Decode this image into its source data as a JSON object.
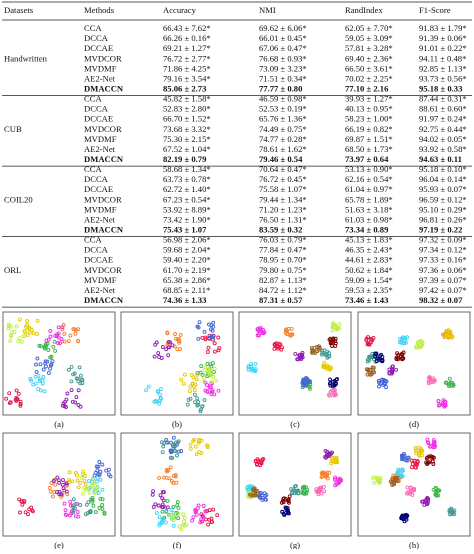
{
  "table": {
    "headers": [
      "Datasets",
      "Methods",
      "Accuracy",
      "NMI",
      "RandIndex",
      "F1-Score"
    ],
    "groups": [
      {
        "dataset": "Handwritten",
        "rows": [
          [
            "CCA",
            "66.43 ± 7.62*",
            "69.62 ± 6.06*",
            "62.05 ± 7.70*",
            "91.83 ± 1.79*"
          ],
          [
            "DCCA",
            "66.26 ± 0.16*",
            "66.01 ± 0.45*",
            "59.05 ± 3.09*",
            "91.39 ± 0.06*"
          ],
          [
            "DCCAE",
            "69.21 ± 1.27*",
            "67.06 ± 0.47*",
            "57.81 ± 3.28*",
            "91.01 ± 0.22*"
          ],
          [
            "MVDCOR",
            "76.72 ± 2.77*",
            "76.68 ± 0.93*",
            "69.40 ± 2.36*",
            "94.11 ± 0.48*"
          ],
          [
            "MVDMF",
            "71.86 ± 4.25*",
            "73.09 ± 3.23*",
            "66.50 ± 3.61*",
            "92.85 ± 1.13*"
          ],
          [
            "AE2-Net",
            "79.16 ± 3.54*",
            "71.51 ± 0.34*",
            "70.02 ± 2.25*",
            "93.73 ± 0.56*"
          ],
          [
            "DMACCN",
            "85.06 ± 2.73",
            "77.77 ± 0.80",
            "77.10 ± 2.16",
            "95.18 ± 0.33"
          ]
        ]
      },
      {
        "dataset": "CUB",
        "rows": [
          [
            "CCA",
            "45.82 ± 1.58*",
            "46.59 ± 0.98*",
            "39.93 ± 1.27*",
            "87.44 ± 0.31*"
          ],
          [
            "DCCA",
            "52.83 ± 2.80*",
            "52.53 ± 0.19*",
            "40.13 ± 0.95*",
            "88.61 ± 0.60*"
          ],
          [
            "DCCAE",
            "66.70 ± 1.52*",
            "65.76 ± 1.36*",
            "58.23 ± 1.00*",
            "91.97 ± 0.24*"
          ],
          [
            "MVDCOR",
            "73.68 ± 3.32*",
            "74.49 ± 0.75*",
            "66.19 ± 0.82*",
            "92.75 ± 0.44*"
          ],
          [
            "MVDMF",
            "75.30 ± 2.15*",
            "74.77 ± 0.28*",
            "69.87 ± 1.51*",
            "94.02 ± 0.05*"
          ],
          [
            "AE2-Net",
            "67.52 ± 1.04*",
            "78.61 ± 1.62*",
            "68.50 ± 1.73*",
            "93.92 ± 0.58*"
          ],
          [
            "DMACCN",
            "82.19 ± 0.79",
            "79.46 ± 0.54",
            "73.97 ± 0.64",
            "94.63 ± 0.11"
          ]
        ]
      },
      {
        "dataset": "COIL20",
        "rows": [
          [
            "CCA",
            "58.68 ± 1.34*",
            "70.64 ± 0.47*",
            "53.13 ± 0.90*",
            "95.18 ± 0.10*"
          ],
          [
            "DCCA",
            "63.73 ± 0.78*",
            "76.72 ± 0.45*",
            "62.16 ± 0.54*",
            "96.04 ± 0.14*"
          ],
          [
            "DCCAE",
            "62.72 ± 1.40*",
            "75.58 ± 1.07*",
            "61.04 ± 0.97*",
            "95.93 ± 0.07*"
          ],
          [
            "MVDCOR",
            "67.23 ± 0.54*",
            "79.44 ± 1.34*",
            "65.78 ± 1.89*",
            "96.59 ± 0.12*"
          ],
          [
            "MVDMF",
            "53.92 ± 8.89*",
            "71.20 ± 1.23*",
            "51.63 ± 3.18*",
            "95.10 ± 0.29*"
          ],
          [
            "AE2-Net",
            "73.42 ± 1.90*",
            "76.50 ± 1.31*",
            "61.03 ± 0.98*",
            "96.81 ± 0.26*"
          ],
          [
            "DMACCN",
            "75.43 ± 1.07",
            "83.59 ± 0.32",
            "73.34 ± 0.89",
            "97.19 ± 0.22"
          ]
        ]
      },
      {
        "dataset": "ORL",
        "rows": [
          [
            "CCA",
            "56.98 ± 2.06*",
            "76.03 ± 0.79*",
            "45.13 ± 1.83*",
            "97.32 ± 0.09*"
          ],
          [
            "DCCA",
            "59.68 ± 2.04*",
            "77.84 ± 0.47*",
            "46.35 ± 2.43*",
            "97.34 ± 0.12*"
          ],
          [
            "DCCAE",
            "59.40 ± 2.20*",
            "78.95 ± 0.70*",
            "44.61 ± 2.83*",
            "97.33 ± 0.16*"
          ],
          [
            "MVDCOR",
            "61.70 ± 2.19*",
            "79.80 ± 0.75*",
            "50.62 ± 1.84*",
            "97.36 ± 0.06*"
          ],
          [
            "MVDMF",
            "65.38 ± 2.86*",
            "82.87 ± 1.13*",
            "59.09 ± 1.54*",
            "97.39 ± 0.07*"
          ],
          [
            "AE2-Net",
            "68.85 ± 2.11*",
            "84.72 ± 1.12*",
            "59.53 ± 2.35*",
            "97.42 ± 0.07*"
          ],
          [
            "DMACCN",
            "74.36 ± 1.33",
            "87.31 ± 0.57",
            "73.46 ± 1.43",
            "98.32 ± 0.07"
          ]
        ]
      }
    ]
  },
  "figure": {
    "panels": [
      "(a)",
      "(b)",
      "(c)",
      "(d)",
      "(e)",
      "(f)",
      "(g)",
      "(h)"
    ]
  }
}
